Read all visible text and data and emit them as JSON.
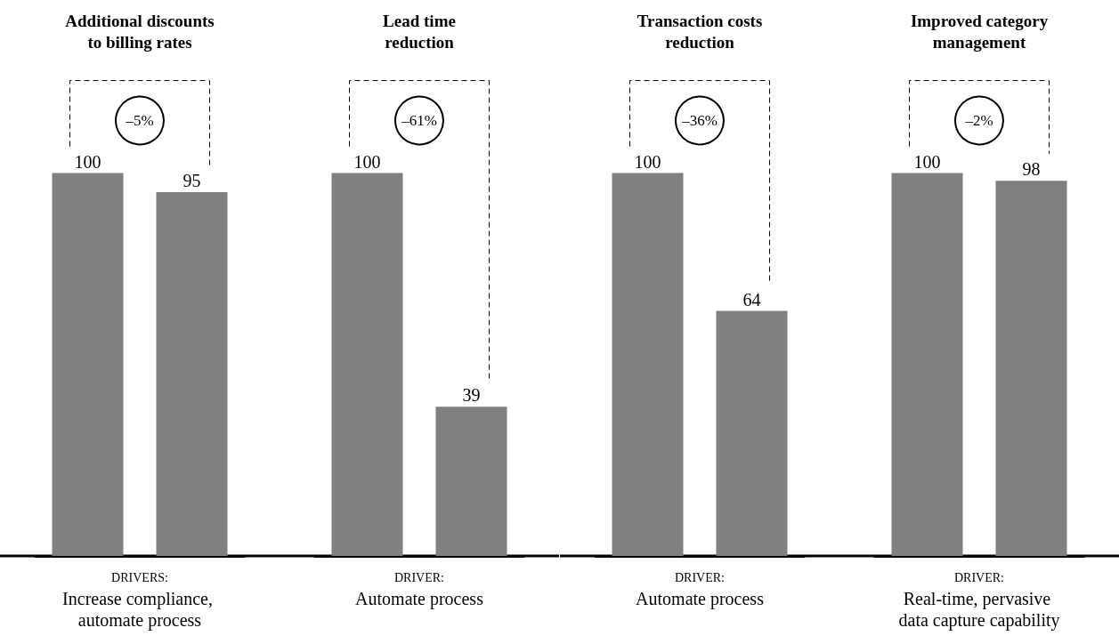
{
  "chart_data": [
    {
      "type": "bar",
      "title": "Additional discounts\nto billing rates",
      "categories": [
        null,
        null
      ],
      "values": [
        100,
        95
      ],
      "color": "#808080",
      "data_labels": true,
      "tick_labels": false,
      "annotations": [
        "–5%",
        "DRIVERS:",
        "Increase compliance, automate process"
      ]
    },
    {
      "type": "bar",
      "title": "Lead time\nreduction",
      "categories": [
        null,
        null
      ],
      "values": [
        100,
        39
      ],
      "color": "#808080",
      "data_labels": true,
      "tick_labels": false,
      "annotations": [
        "–61%",
        "DRIVER:",
        "Automate process"
      ]
    },
    {
      "type": "bar",
      "title": "Transaction costs\nreduction",
      "categories": [
        null,
        null
      ],
      "values": [
        100,
        64
      ],
      "color": "#808080",
      "data_labels": true,
      "tick_labels": false,
      "annotations": [
        "–36%",
        "DRIVER:",
        "Automate process"
      ]
    },
    {
      "type": "bar",
      "title": "Improved category\nmanagement",
      "categories": [
        null,
        null
      ],
      "values": [
        100,
        98
      ],
      "color": "#808080",
      "data_labels": true,
      "tick_labels": false,
      "annotations": [
        "–2%",
        "DRIVER:",
        "Real-time, pervasive data capture capability"
      ]
    }
  ]
}
